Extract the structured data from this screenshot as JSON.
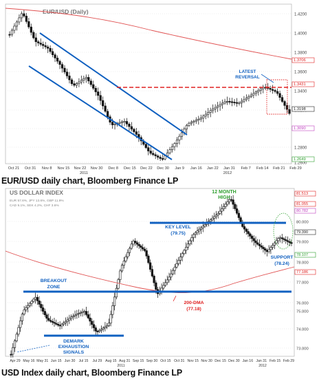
{
  "charts": [
    {
      "title": "EUR/USD (Daily)",
      "caption": "EUR/USD daily chart, Bloomberg Finance LP",
      "y_ticks": [
        "1.4200",
        "1.4000",
        "1.3800",
        "1.3600",
        "1.3400",
        "1.3200",
        "1.3000",
        "1.2800",
        "1.2600"
      ],
      "x_ticks": [
        "Oct 21",
        "Oct 31",
        "Nov 8",
        "Nov 15",
        "Nov 22",
        "Nov 30",
        "Dec 8",
        "Dec 15",
        "Dec 22",
        "Dec 30",
        "Jan 9",
        "Jan 16",
        "Jan 22",
        "Jan 31",
        "Feb 7",
        "Feb 14",
        "Feb 21",
        "Feb 29"
      ],
      "year_labels": [
        "2011",
        "2012"
      ],
      "right_tags": [
        {
          "text": "1.3706",
          "color": "#e02020"
        },
        {
          "text": "1.3431",
          "color": "#e02020"
        },
        {
          "text": "1.3198",
          "color": "#222222"
        },
        {
          "text": "1.3090",
          "color": "#c040c0"
        },
        {
          "text": "1.2649",
          "color": "#30a030"
        }
      ],
      "annotations": [
        "LATEST",
        "REVERSAL"
      ],
      "colors": {
        "trend_channel": "#1060c0",
        "reversal_level": "#e02020",
        "ma_line": "#e05050"
      }
    },
    {
      "title": "US DOLLAR INDEX",
      "caption": "USD Index daily chart, Bloomberg Finance LP",
      "weights": [
        "EUR 57.6%, JPY 13.6%, GBP 11.9%",
        "CAD 9.1%, SEK 4.2%, CHF 3.6%"
      ],
      "y_ticks": [
        "80.000",
        "79.000",
        "78.000",
        "77.000",
        "76.000",
        "75.000",
        "74.000",
        "73.000"
      ],
      "x_ticks": [
        "Apr 29",
        "May 31",
        "Jun 30",
        "Jul 29",
        "Aug 31",
        "Sep 30",
        "Oct 31",
        "Nov 30",
        "Dec 30",
        "Jan 31",
        "Feb 29"
      ],
      "x_ticks_minor": [
        "May 16",
        "Jun 15",
        "Jul 15",
        "Aug 15",
        "Sep 15",
        "Oct 15",
        "Nov 15",
        "Dec 15",
        "Jan 16",
        "Feb 15"
      ],
      "year_labels": [
        "2011",
        "2012"
      ],
      "right_tags": [
        {
          "text": "81.513",
          "color": "#e02020"
        },
        {
          "text": "81.055",
          "color": "#e02020"
        },
        {
          "text": "80.782",
          "color": "#c040c0"
        },
        {
          "text": "79.390",
          "color": "#222222"
        },
        {
          "text": "78.107",
          "color": "#30a030"
        },
        {
          "text": "77.186",
          "color": "#e02020"
        }
      ],
      "annotations": {
        "high": [
          "12 MONTH",
          "HIGH"
        ],
        "key_level": [
          "KEY LEVEL",
          "(79.75)"
        ],
        "support": [
          "SUPPORT",
          "(78.24)"
        ],
        "breakout": [
          "BREAKOUT",
          "ZONE"
        ],
        "dma": [
          "200-DMA",
          "(77.18)"
        ],
        "demark": [
          "DEMARK",
          "EXHAUSTION",
          "SIGNALS"
        ]
      },
      "colors": {
        "key_level": "#1060c0",
        "breakout": "#1060c0",
        "ma_line": "#e05050"
      }
    }
  ]
}
